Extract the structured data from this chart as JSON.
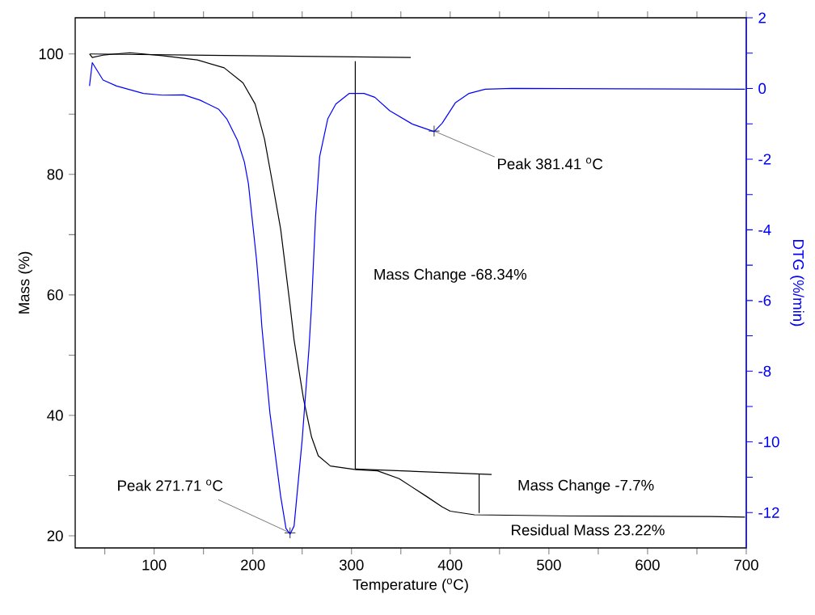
{
  "chart_data": {
    "type": "line",
    "xlabel": "Temperature ($^{o}$C)",
    "ylabel": "Mass (%)",
    "y2label": "DTG (%/min)",
    "xlim": [
      20,
      700
    ],
    "xticks": [
      {
        "value": 50,
        "label": null
      },
      100,
      {
        "value": 150,
        "label": null
      },
      200,
      {
        "value": 250,
        "label": null
      },
      300,
      {
        "value": 350,
        "label": null
      },
      400,
      {
        "value": 450,
        "label": null
      },
      500,
      {
        "value": 550,
        "label": null
      },
      600,
      {
        "value": 650,
        "label": null
      },
      700
    ],
    "ylim": [
      18,
      106
    ],
    "yticks": [
      20,
      {
        "value": 30,
        "label": null
      },
      40,
      {
        "value": 50,
        "label": null
      },
      60,
      {
        "value": 70,
        "label": null
      },
      80,
      {
        "value": 90,
        "label": null
      },
      100
    ],
    "y2lim": [
      -13,
      2
    ],
    "y2ticks": [
      -12,
      {
        "value": -11,
        "label": null
      },
      -10,
      {
        "value": -9,
        "label": null
      },
      -8,
      {
        "value": -7,
        "label": null
      },
      -6,
      {
        "value": -5,
        "label": null
      },
      -4,
      {
        "value": -3,
        "label": null
      },
      -2,
      {
        "value": -1,
        "label": null
      },
      0,
      {
        "value": 1,
        "label": null
      },
      2
    ],
    "series": [
      {
        "color": "#000000",
        "x": [
          34.5,
          37.3,
          48.2,
          75.5,
          108.2,
          143.6,
          170.9,
          190,
          202.3,
          211.8,
          220,
          228.2,
          237.7,
          241.8,
          251.4,
          259.5,
          266.3,
          278.6,
          304.5,
          326.4,
          348.2,
          375.5,
          391.9,
          400,
          424.6,
          522.8,
          664.6,
          698.7
        ],
        "values": [
          100.0,
          99.4,
          99.8,
          100.2,
          99.7,
          99.0,
          97.7,
          95.2,
          91.7,
          85.9,
          78.5,
          70.9,
          58.3,
          52.5,
          42.7,
          36.4,
          33.3,
          31.6,
          31.0,
          30.8,
          29.5,
          26.6,
          24.8,
          24.1,
          23.5,
          23.3,
          23.2,
          23.1
        ]
      },
      {
        "color": "#0000ff",
        "axis": "y2",
        "x": [
          34.5,
          37.3,
          48.2,
          61.8,
          89.1,
          108.2,
          130,
          146.4,
          165.5,
          173.6,
          184.5,
          191.4,
          195.5,
          203.7,
          207.8,
          209.1,
          217.3,
          228.2,
          233.6,
          237.7,
          241.8,
          250,
          256.9,
          259.5,
          263.6,
          267.7,
          275.9,
          284.1,
          297.8,
          312.7,
          323.6,
          338.7,
          361.8,
          383.7,
          391.9,
          405.4,
          419.1,
          435.5,
          462.7,
          571.8,
          698.7
        ],
        "values": [
          0.07,
          0.73,
          0.24,
          0.07,
          -0.14,
          -0.19,
          -0.18,
          -0.33,
          -0.59,
          -0.86,
          -1.47,
          -2.08,
          -2.69,
          -4.83,
          -6.2,
          -6.73,
          -9.18,
          -11.54,
          -12.45,
          -12.61,
          -12.38,
          -9.94,
          -7.35,
          -6.13,
          -3.61,
          -1.93,
          -0.86,
          -0.44,
          -0.14,
          -0.14,
          -0.25,
          -0.63,
          -1.01,
          -1.22,
          -0.98,
          -0.4,
          -0.14,
          -0.02,
          0,
          -0.01,
          -0.02
        ]
      },
      {
        "type": "line",
        "color": "#000000",
        "x": [
          35,
          360
        ],
        "values": [
          100,
          99.4
        ]
      },
      {
        "type": "line",
        "color": "#000000",
        "x": [
          303.8,
          303.8
        ],
        "values": [
          98.8,
          31.1
        ]
      },
      {
        "type": "line",
        "color": "#000000",
        "x": [
          303.8,
          442
        ],
        "values": [
          31.1,
          30.2
        ]
      },
      {
        "type": "line",
        "color": "#000000",
        "x": [
          429.3,
          429.3
        ],
        "values": [
          30.2,
          23.8
        ]
      }
    ],
    "annotations": [
      {
        "text": "Peak 271.71 $^{o}$C",
        "x": 237.7,
        "y": 20.5
      },
      {
        "text": "Peak 381.41 $^{o}$C",
        "x": 383.7,
        "y": 87.2
      },
      "Mass Change -68.34%",
      "Mass Change -7.7%",
      "Residual Mass 23.22%"
    ]
  }
}
